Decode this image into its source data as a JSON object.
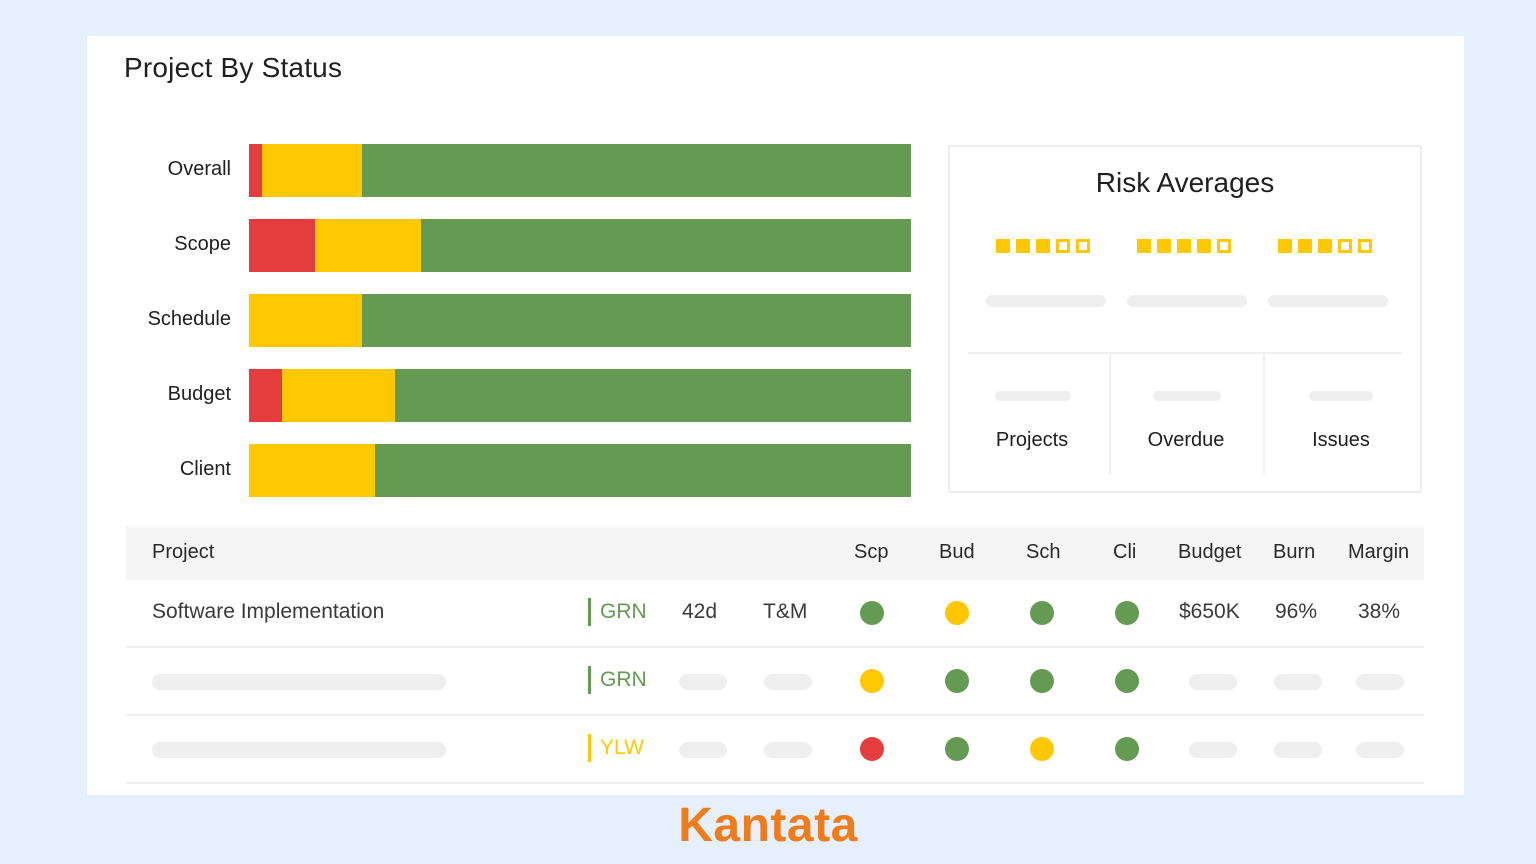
{
  "title": "Project By Status",
  "colors": {
    "red": "#e53d3d",
    "yellow": "#ffc800",
    "green": "#659a53"
  },
  "status_bars": [
    {
      "label": "Overall",
      "red": 2,
      "yellow": 15,
      "green": 83
    },
    {
      "label": "Scope",
      "red": 10,
      "yellow": 16,
      "green": 74
    },
    {
      "label": "Schedule",
      "red": 0,
      "yellow": 17,
      "green": 83
    },
    {
      "label": "Budget",
      "red": 5,
      "yellow": 17,
      "green": 78
    },
    {
      "label": "Client",
      "red": 0,
      "yellow": 19,
      "green": 81
    }
  ],
  "risk": {
    "title": "Risk Averages",
    "ratings": [
      {
        "filled": 3,
        "total": 5
      },
      {
        "filled": 4,
        "total": 5
      },
      {
        "filled": 3,
        "total": 5
      }
    ],
    "metrics": [
      "Projects",
      "Overdue",
      "Issues"
    ]
  },
  "table": {
    "headers": {
      "project": "Project",
      "scp": "Scp",
      "bud": "Bud",
      "sch": "Sch",
      "cli": "Cli",
      "budget": "Budget",
      "burn": "Burn",
      "margin": "Margin"
    },
    "rows": [
      {
        "project": "Software Implementation",
        "status": "GRN",
        "duration": "42d",
        "type": "T&M",
        "scp": "green",
        "bud": "yellow",
        "sch": "green",
        "cli": "green",
        "budget": "$650K",
        "burn": "96%",
        "margin": "38%"
      },
      {
        "project": "",
        "status": "GRN",
        "duration": "",
        "type": "",
        "scp": "yellow",
        "bud": "green",
        "sch": "green",
        "cli": "green",
        "budget": "",
        "burn": "",
        "margin": ""
      },
      {
        "project": "",
        "status": "YLW",
        "duration": "",
        "type": "",
        "scp": "red",
        "bud": "green",
        "sch": "yellow",
        "cli": "green",
        "budget": "",
        "burn": "",
        "margin": ""
      }
    ]
  },
  "brand": "Kantata"
}
